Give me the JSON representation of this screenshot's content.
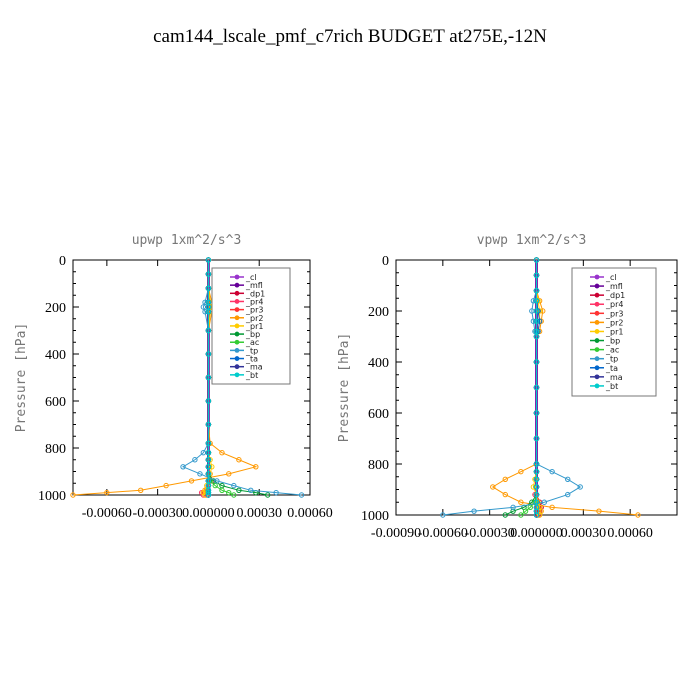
{
  "page": {
    "title": "cam144_lscale_pmf_c7rich  BUDGET at275E,-12N"
  },
  "legend_labels": [
    "_cl",
    "_mfl",
    "_dp1",
    "_pr4",
    "_pr3",
    "_pr2",
    "_pr1",
    "_bp",
    "_ac",
    "_tp",
    "_ta",
    "_ma",
    "_bt"
  ],
  "chart_data": [
    {
      "type": "line",
      "title": "upwp   1xm^2/s^3",
      "ylabel": "Pressure [hPa]",
      "xlabel": "",
      "ylim": [
        1000,
        0
      ],
      "xlim": [
        -0.0008,
        0.0006
      ],
      "yticks": [
        0,
        200,
        400,
        600,
        800,
        1000
      ],
      "ytick_labels": [
        "0",
        "200",
        "400",
        "600",
        "800",
        "1000"
      ],
      "xticks": [
        -0.0006,
        -0.0003,
        0.0,
        0.0003,
        0.0006
      ],
      "xtick_labels": [
        "-0.00060",
        "-0.00030",
        "0.000000",
        "0.00030",
        "0.00060"
      ],
      "legend_position": "top-right",
      "y": [
        0,
        60,
        120,
        180,
        200,
        220,
        300,
        400,
        500,
        600,
        700,
        780,
        820,
        850,
        880,
        910,
        940,
        960,
        980,
        990,
        1000
      ],
      "series": [
        {
          "name": "_cl",
          "color": "#9933cc",
          "values": [
            0,
            0,
            0,
            0,
            0,
            0,
            0,
            0,
            0,
            0,
            0,
            0,
            0,
            0,
            0,
            0,
            0,
            0,
            0,
            0,
            0
          ]
        },
        {
          "name": "_mfl",
          "color": "#660099",
          "values": [
            0,
            0,
            0,
            0,
            0,
            0,
            0,
            0,
            0,
            0,
            0,
            0,
            0,
            0,
            0,
            0,
            0,
            0,
            0,
            0,
            0
          ]
        },
        {
          "name": "_dp1",
          "color": "#cc0033",
          "values": [
            0,
            0,
            0,
            0,
            0,
            0,
            0,
            0,
            0,
            0,
            0,
            0,
            0,
            0,
            0,
            0,
            0,
            0,
            -2e-05,
            -3e-05,
            -2e-05
          ]
        },
        {
          "name": "_pr4",
          "color": "#ff3366",
          "values": [
            0,
            0,
            0,
            0,
            0,
            0,
            0,
            0,
            0,
            0,
            0,
            0,
            0,
            0,
            0,
            1e-05,
            2e-05,
            0,
            -2e-05,
            -4e-05,
            -3e-05
          ]
        },
        {
          "name": "_pr3",
          "color": "#ff3333",
          "values": [
            0,
            0,
            0,
            0,
            0,
            0,
            0,
            0,
            0,
            0,
            0,
            0,
            0,
            0,
            0,
            0,
            1e-05,
            0,
            -1e-05,
            -2e-05,
            -1e-05
          ]
        },
        {
          "name": "_pr2",
          "color": "#ff9900",
          "values": [
            0,
            0,
            0,
            2e-05,
            3e-05,
            2e-05,
            0,
            0,
            0,
            0,
            0,
            1e-05,
            8e-05,
            0.00018,
            0.00028,
            0.00012,
            -0.0001,
            -0.00025,
            -0.0004,
            -0.0006,
            -0.0008
          ]
        },
        {
          "name": "_pr1",
          "color": "#ffcc00",
          "values": [
            0,
            0,
            0,
            1e-05,
            2e-05,
            1e-05,
            0,
            0,
            0,
            0,
            0,
            0,
            0,
            1e-05,
            2e-05,
            1e-05,
            0,
            -1e-05,
            -2e-05,
            -3e-05,
            -2e-05
          ]
        },
        {
          "name": "_bp",
          "color": "#009933",
          "values": [
            0,
            0,
            0,
            0,
            0,
            0,
            0,
            0,
            0,
            0,
            0,
            0,
            0,
            0,
            0,
            0,
            3e-05,
            8e-05,
            0.00018,
            0.00028,
            0.00035
          ]
        },
        {
          "name": "_ac",
          "color": "#33cc33",
          "values": [
            0,
            0,
            0,
            0,
            0,
            0,
            0,
            0,
            0,
            0,
            0,
            0,
            0,
            0,
            0,
            0,
            1e-05,
            4e-05,
            8e-05,
            0.00012,
            0.00015
          ]
        },
        {
          "name": "_tp",
          "color": "#3399cc",
          "values": [
            0,
            0,
            0,
            -2e-05,
            -3e-05,
            -2e-05,
            0,
            0,
            0,
            0,
            0,
            0,
            -3e-05,
            -8e-05,
            -0.00015,
            -5e-05,
            5e-05,
            0.00015,
            0.00025,
            0.0004,
            0.00055
          ]
        },
        {
          "name": "_ta",
          "color": "#0066cc",
          "values": [
            0,
            0,
            0,
            0,
            0,
            0,
            0,
            0,
            0,
            0,
            0,
            0,
            0,
            0,
            0,
            0,
            0,
            0,
            0,
            0,
            0
          ]
        },
        {
          "name": "_ma",
          "color": "#333399",
          "values": [
            0,
            0,
            0,
            0,
            0,
            0,
            0,
            0,
            0,
            0,
            0,
            0,
            0,
            0,
            0,
            0,
            0,
            0,
            0,
            0,
            0
          ]
        },
        {
          "name": "_bt",
          "color": "#00cccc",
          "values": [
            0,
            0,
            0,
            0,
            0,
            0,
            0,
            0,
            0,
            0,
            0,
            0,
            0,
            0,
            0,
            0,
            0,
            0,
            0,
            0,
            0
          ]
        }
      ]
    },
    {
      "type": "line",
      "title": "vpwp   1xm^2/s^3",
      "ylabel": "Pressure [hPa]",
      "xlabel": "",
      "ylim": [
        1000,
        0
      ],
      "xlim": [
        -0.0009,
        0.0009
      ],
      "yticks": [
        0,
        200,
        400,
        600,
        800,
        1000
      ],
      "ytick_labels": [
        "0",
        "200",
        "400",
        "600",
        "800",
        "1000"
      ],
      "xticks": [
        -0.0009,
        -0.0006,
        -0.0003,
        0.0,
        0.0003,
        0.0006
      ],
      "xtick_labels": [
        "-0.00090",
        "-0.00060",
        "-0.00030",
        "0.000000",
        "0.00030",
        "0.00060"
      ],
      "legend_position": "top-right",
      "y": [
        0,
        60,
        120,
        160,
        200,
        240,
        280,
        300,
        400,
        500,
        600,
        700,
        800,
        830,
        860,
        890,
        920,
        950,
        970,
        985,
        1000
      ],
      "series": [
        {
          "name": "_cl",
          "color": "#9933cc",
          "values": [
            0,
            0,
            0,
            0,
            0,
            0,
            0,
            0,
            0,
            0,
            0,
            0,
            0,
            0,
            0,
            0,
            0,
            0,
            0,
            0,
            0
          ]
        },
        {
          "name": "_mfl",
          "color": "#660099",
          "values": [
            0,
            0,
            0,
            0,
            0,
            0,
            0,
            0,
            0,
            0,
            0,
            0,
            0,
            0,
            0,
            0,
            0,
            0,
            0,
            0,
            0
          ]
        },
        {
          "name": "_dp1",
          "color": "#cc0033",
          "values": [
            0,
            0,
            0,
            0,
            0,
            0,
            0,
            0,
            0,
            0,
            0,
            0,
            0,
            0,
            0,
            0,
            0,
            2e-05,
            3e-05,
            2e-05,
            1e-05
          ]
        },
        {
          "name": "_pr4",
          "color": "#ff3366",
          "values": [
            0,
            0,
            0,
            0,
            0,
            0,
            0,
            0,
            0,
            0,
            0,
            0,
            0,
            0,
            0,
            0,
            -1e-05,
            0,
            2e-05,
            3e-05,
            2e-05
          ]
        },
        {
          "name": "_pr3",
          "color": "#ff3333",
          "values": [
            0,
            0,
            0,
            0,
            0,
            0,
            0,
            0,
            0,
            0,
            0,
            0,
            0,
            0,
            0,
            0,
            0,
            0,
            1e-05,
            1e-05,
            0
          ]
        },
        {
          "name": "_pr2",
          "color": "#ff9900",
          "values": [
            0,
            0,
            0,
            2e-05,
            4e-05,
            3e-05,
            2e-05,
            0,
            0,
            0,
            0,
            0,
            0,
            -0.0001,
            -0.0002,
            -0.00028,
            -0.0002,
            -0.0001,
            0.0001,
            0.0004,
            0.00065
          ]
        },
        {
          "name": "_pr1",
          "color": "#ffcc00",
          "values": [
            0,
            0,
            0,
            1e-05,
            2e-05,
            2e-05,
            1e-05,
            0,
            0,
            0,
            0,
            0,
            0,
            0,
            -1e-05,
            -2e-05,
            0,
            1e-05,
            2e-05,
            3e-05,
            2e-05
          ]
        },
        {
          "name": "_bp",
          "color": "#009933",
          "values": [
            0,
            0,
            0,
            0,
            0,
            0,
            0,
            0,
            0,
            0,
            0,
            0,
            0,
            0,
            0,
            0,
            0,
            -3e-05,
            -8e-05,
            -0.00015,
            -0.0002
          ]
        },
        {
          "name": "_ac",
          "color": "#33cc33",
          "values": [
            0,
            0,
            0,
            0,
            0,
            0,
            0,
            0,
            0,
            0,
            0,
            0,
            0,
            0,
            0,
            0,
            0,
            -1e-05,
            -4e-05,
            -7e-05,
            -0.0001
          ]
        },
        {
          "name": "_tp",
          "color": "#3399cc",
          "values": [
            0,
            0,
            0,
            -2e-05,
            -3e-05,
            -2e-05,
            -1e-05,
            0,
            0,
            0,
            0,
            0,
            0,
            0.0001,
            0.0002,
            0.00028,
            0.0002,
            5e-05,
            -0.00015,
            -0.0004,
            -0.0006
          ]
        },
        {
          "name": "_ta",
          "color": "#0066cc",
          "values": [
            0,
            0,
            0,
            0,
            1e-05,
            2e-05,
            1e-05,
            0,
            0,
            0,
            0,
            0,
            0,
            0,
            0,
            0,
            0,
            0,
            0,
            0,
            0
          ]
        },
        {
          "name": "_ma",
          "color": "#333399",
          "values": [
            0,
            0,
            0,
            0,
            0,
            0,
            0,
            0,
            0,
            0,
            0,
            0,
            0,
            0,
            0,
            0,
            0,
            0,
            0,
            0,
            0
          ]
        },
        {
          "name": "_bt",
          "color": "#00cccc",
          "values": [
            0,
            0,
            0,
            0,
            0,
            0,
            0,
            0,
            0,
            0,
            0,
            0,
            0,
            0,
            0,
            0,
            0,
            0,
            0,
            0,
            0
          ]
        }
      ]
    }
  ]
}
